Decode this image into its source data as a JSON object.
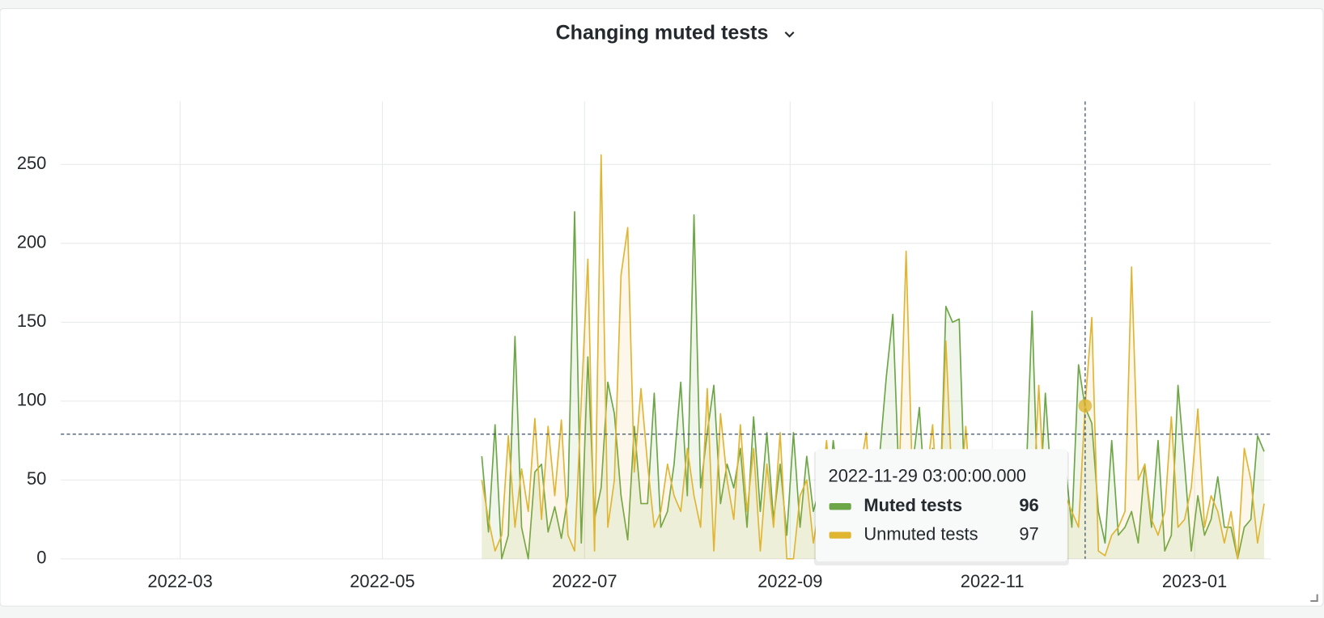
{
  "chart_data": {
    "type": "line",
    "title": "Changing muted tests",
    "x": [
      "2022-05-31",
      "2022-06-02",
      "2022-06-04",
      "2022-06-06",
      "2022-06-08",
      "2022-06-10",
      "2022-06-12",
      "2022-06-14",
      "2022-06-16",
      "2022-06-18",
      "2022-06-20",
      "2022-06-22",
      "2022-06-24",
      "2022-06-26",
      "2022-06-28",
      "2022-06-30",
      "2022-07-02",
      "2022-07-04",
      "2022-07-06",
      "2022-07-08",
      "2022-07-10",
      "2022-07-12",
      "2022-07-14",
      "2022-07-16",
      "2022-07-18",
      "2022-07-20",
      "2022-07-22",
      "2022-07-24",
      "2022-07-26",
      "2022-07-28",
      "2022-07-30",
      "2022-08-01",
      "2022-08-03",
      "2022-08-05",
      "2022-08-07",
      "2022-08-09",
      "2022-08-11",
      "2022-08-13",
      "2022-08-15",
      "2022-08-17",
      "2022-08-19",
      "2022-08-21",
      "2022-08-23",
      "2022-08-25",
      "2022-08-27",
      "2022-08-29",
      "2022-08-31",
      "2022-09-02",
      "2022-09-04",
      "2022-09-06",
      "2022-09-08",
      "2022-09-10",
      "2022-09-12",
      "2022-09-14",
      "2022-09-16",
      "2022-09-18",
      "2022-09-20",
      "2022-09-22",
      "2022-09-24",
      "2022-09-26",
      "2022-09-28",
      "2022-09-30",
      "2022-10-02",
      "2022-10-04",
      "2022-10-06",
      "2022-10-08",
      "2022-10-10",
      "2022-10-12",
      "2022-10-14",
      "2022-10-16",
      "2022-10-18",
      "2022-10-20",
      "2022-10-22",
      "2022-10-24",
      "2022-10-26",
      "2022-10-28",
      "2022-10-30",
      "2022-11-01",
      "2022-11-03",
      "2022-11-05",
      "2022-11-07",
      "2022-11-09",
      "2022-11-11",
      "2022-11-13",
      "2022-11-15",
      "2022-11-17",
      "2022-11-19",
      "2022-11-21",
      "2022-11-23",
      "2022-11-25",
      "2022-11-27",
      "2022-11-29",
      "2022-12-01",
      "2022-12-03",
      "2022-12-05",
      "2022-12-07",
      "2022-12-09",
      "2022-12-11",
      "2022-12-13",
      "2022-12-15",
      "2022-12-17",
      "2022-12-19",
      "2022-12-21",
      "2022-12-23",
      "2022-12-25",
      "2022-12-27",
      "2022-12-29",
      "2022-12-31",
      "2023-01-02",
      "2023-01-04",
      "2023-01-06",
      "2023-01-08",
      "2023-01-10",
      "2023-01-12",
      "2023-01-14",
      "2023-01-16",
      "2023-01-18",
      "2023-01-20",
      "2023-01-22"
    ],
    "series": [
      {
        "name": "Muted tests",
        "color": "#6ca646",
        "values": [
          65,
          17,
          85,
          0,
          15,
          141,
          20,
          0,
          55,
          60,
          17,
          33,
          13,
          40,
          220,
          10,
          128,
          25,
          45,
          112,
          92,
          40,
          12,
          84,
          35,
          35,
          105,
          20,
          30,
          60,
          112,
          40,
          218,
          45,
          80,
          110,
          35,
          60,
          45,
          70,
          20,
          90,
          30,
          80,
          25,
          60,
          15,
          80,
          20,
          65,
          30,
          45,
          25,
          75,
          40,
          30,
          55,
          20,
          40,
          30,
          65,
          115,
          155,
          40,
          20,
          60,
          96,
          30,
          70,
          20,
          160,
          150,
          152,
          20,
          60,
          30,
          45,
          40,
          20,
          60,
          20,
          30,
          40,
          157,
          20,
          105,
          40,
          25,
          60,
          20,
          123,
          96,
          86,
          30,
          10,
          75,
          15,
          20,
          30,
          10,
          60,
          20,
          75,
          5,
          15,
          110,
          60,
          5,
          40,
          15,
          25,
          52,
          20,
          20,
          0,
          20,
          25,
          78,
          68
        ]
      },
      {
        "name": "Unmuted tests",
        "color": "#e0b531",
        "values": [
          50,
          25,
          5,
          15,
          78,
          20,
          57,
          30,
          89,
          25,
          84,
          40,
          88,
          15,
          5,
          100,
          190,
          5,
          256,
          20,
          50,
          180,
          210,
          55,
          108,
          60,
          20,
          30,
          60,
          40,
          30,
          70,
          40,
          20,
          108,
          5,
          92,
          50,
          25,
          85,
          30,
          70,
          5,
          60,
          20,
          80,
          0,
          0,
          40,
          50,
          10,
          35,
          75,
          20,
          45,
          60,
          30,
          55,
          80,
          10,
          35,
          40,
          20,
          60,
          195,
          40,
          10,
          50,
          85,
          20,
          138,
          40,
          30,
          84,
          20,
          50,
          30,
          60,
          30,
          20,
          50,
          40,
          30,
          20,
          110,
          30,
          60,
          50,
          40,
          30,
          20,
          97,
          153,
          5,
          2,
          15,
          20,
          30,
          185,
          50,
          60,
          25,
          15,
          30,
          90,
          20,
          25,
          45,
          95,
          20,
          40,
          30,
          10,
          30,
          0,
          70,
          50,
          10,
          35
        ]
      }
    ],
    "xlim": [
      "2022-01-24",
      "2023-01-24"
    ],
    "xticks": [
      {
        "value": "2022-03-01",
        "label": "2022-03"
      },
      {
        "value": "2022-05-01",
        "label": "2022-05"
      },
      {
        "value": "2022-07-01",
        "label": "2022-07"
      },
      {
        "value": "2022-09-01",
        "label": "2022-09"
      },
      {
        "value": "2022-11-01",
        "label": "2022-11"
      },
      {
        "value": "2023-01-01",
        "label": "2023-01"
      }
    ],
    "ylim": [
      0,
      290
    ],
    "yticks": [
      0,
      50,
      100,
      150,
      200,
      250
    ],
    "grid": true,
    "crosshair": {
      "x": "2022-11-29",
      "y": 79
    },
    "tooltip": {
      "time": "2022-11-29 03:00:00.000",
      "values": [
        96,
        97
      ]
    }
  }
}
